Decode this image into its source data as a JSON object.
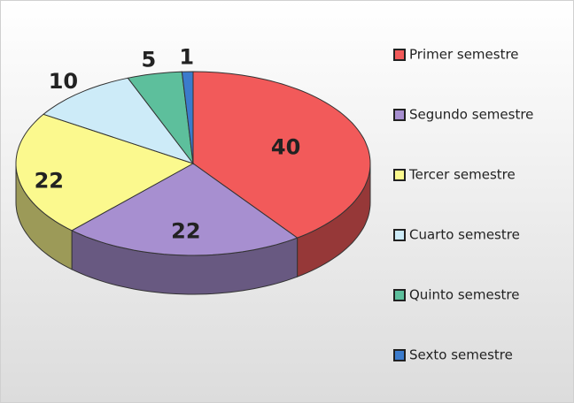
{
  "chart_data": {
    "type": "pie3d",
    "categories": [
      "Primer semestre",
      "Segundo semestre",
      "Tercer semestre",
      "Cuarto semestre",
      "Quinto semestre",
      "Sexto semestre"
    ],
    "values": [
      40,
      22,
      22,
      10,
      5,
      1
    ],
    "colors": [
      "#f25a5a",
      "#a78fd0",
      "#fbf98e",
      "#cdebf8",
      "#5dbf9c",
      "#3b7bcc"
    ],
    "legend": "right"
  }
}
